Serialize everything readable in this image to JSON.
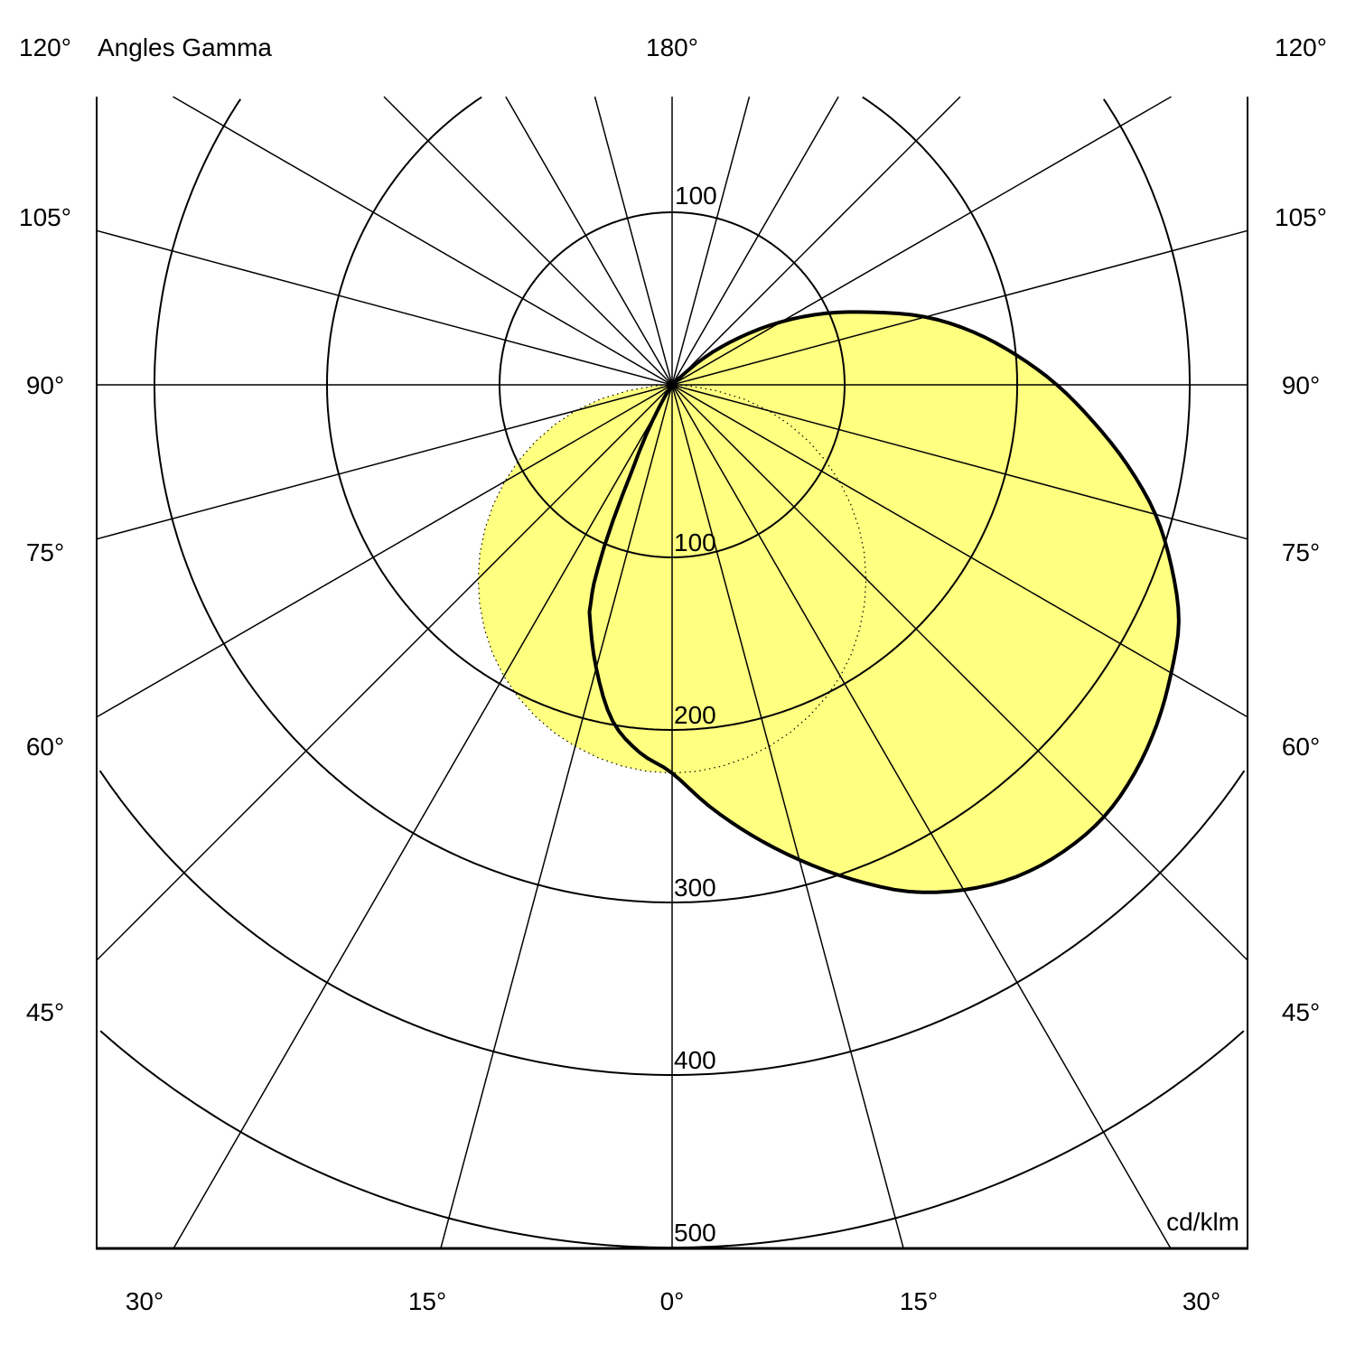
{
  "chart_data": {
    "type": "polar",
    "title": "Angles Gamma",
    "unit_label": "cd/klm",
    "radial_range": [
      0,
      500
    ],
    "radial_ticks": [
      100,
      200,
      300,
      400,
      500
    ],
    "radial_tick_labels_bottom": [
      "100",
      "200",
      "300",
      "400",
      "500"
    ],
    "radial_tick_label_top": "100",
    "angle_step_deg": 15,
    "angle_labels": {
      "top": "180°",
      "left": [
        "120°",
        "105°",
        "90°",
        "75°",
        "60°",
        "45°"
      ],
      "right": [
        "120°",
        "105°",
        "90°",
        "75°",
        "60°",
        "45°"
      ],
      "bottom": [
        "30°",
        "15°",
        "0°",
        "15°",
        "30°"
      ]
    },
    "fill_color": "#FFFF80",
    "grid": true,
    "series": [
      {
        "style": "dotted",
        "gamma_deg": [
          -90,
          -75,
          -60,
          -45,
          -30,
          -15,
          0,
          15,
          30,
          45,
          60,
          75,
          90
        ],
        "intensity": [
          0,
          58,
          112,
          159,
          195,
          217,
          225,
          217,
          195,
          159,
          112,
          58,
          0
        ]
      },
      {
        "style": "bold",
        "gamma_deg": [
          -35,
          -30,
          -25,
          -22,
          -20,
          -15,
          -10,
          -5,
          0,
          5,
          10,
          15,
          20,
          25,
          30,
          35,
          40,
          45,
          50,
          55,
          60,
          65,
          70,
          75,
          80,
          85,
          90,
          95,
          100,
          105,
          110,
          115,
          120,
          125,
          130,
          135
        ],
        "intensity": [
          0,
          15,
          55,
          115,
          140,
          170,
          198,
          214,
          225,
          245,
          265,
          285,
          305,
          324,
          338,
          348,
          353,
          354,
          350,
          343,
          334,
          324,
          308,
          290,
          268,
          245,
          223,
          200,
          177,
          152,
          123,
          98,
          73,
          48,
          25,
          0
        ]
      }
    ]
  }
}
